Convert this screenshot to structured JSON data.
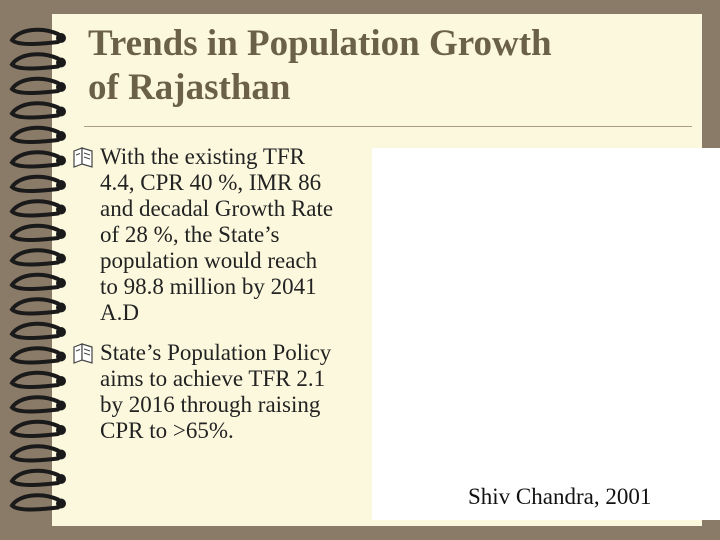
{
  "title": {
    "line1": "Trends in Population Growth",
    "line2": "of Rajasthan"
  },
  "bullets": [
    {
      "icon": "open-book-icon",
      "lines": [
        "With the existing TFR",
        "4.4, CPR 40 %, IMR 86",
        "and decadal Growth Rate",
        "of  28 %, the State’s",
        "population would reach",
        "to 98.8 million by 2041",
        "A.D"
      ]
    },
    {
      "icon": "open-book-icon",
      "lines": [
        "State’s Population Policy",
        "aims to achieve TFR 2.1",
        "by 2016 through raising",
        "CPR to >65%."
      ]
    }
  ],
  "caption": "Shiv Chandra, 2001",
  "colors": {
    "background": "#8a7a68",
    "page": "#fbf8dd",
    "title": "#6b6048"
  }
}
